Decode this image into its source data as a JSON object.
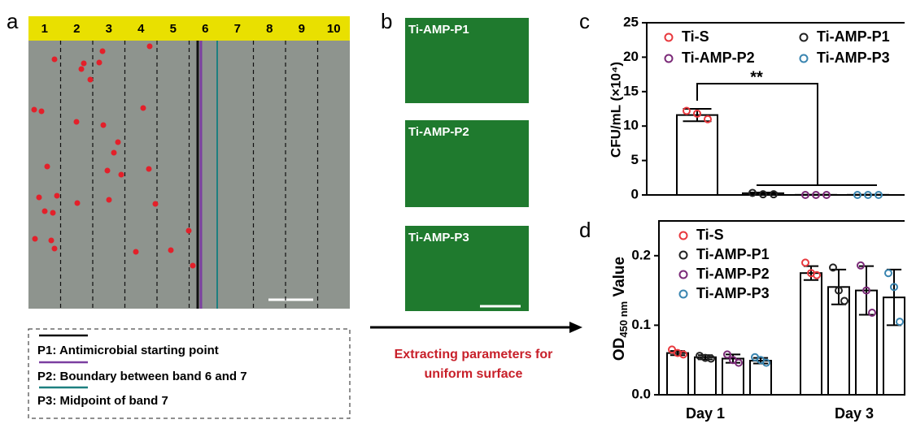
{
  "figure": {
    "panel_labels": [
      "a",
      "b",
      "c",
      "d"
    ],
    "band_numbers": [
      1,
      2,
      3,
      4,
      5,
      6,
      7,
      8,
      9,
      10
    ],
    "legend": [
      "P1: Antimicrobial starting point",
      "P2: Boundary between band 6 and 7",
      "P3: Midpoint of band 7"
    ],
    "image_labels": [
      "Ti-AMP-P1",
      "Ti-AMP-P2",
      "Ti-AMP-P3"
    ],
    "arrow_text": [
      "Extracting parameters for",
      "uniform surface"
    ]
  },
  "chart_data": [
    {
      "type": "bar",
      "ylabel": "CFU/mL (×10⁴)",
      "annotation": "**",
      "ylim": [
        0,
        25
      ],
      "yticks": [
        0,
        5,
        10,
        15,
        20,
        25
      ],
      "series": [
        {
          "name": "Ti-S",
          "color": "#e8383d",
          "values": [
            11.6
          ],
          "errors": [
            0.9
          ],
          "points": [
            [
              12.2,
              11.8,
              11.0
            ]
          ]
        },
        {
          "name": "Ti-AMP-P1",
          "color": "#222222",
          "values": [
            0.25
          ],
          "errors": [
            0.1
          ],
          "points": [
            [
              0.3,
              0.1,
              0.1
            ]
          ]
        },
        {
          "name": "Ti-AMP-P2",
          "color": "#7b2a78",
          "values": [
            0.02
          ],
          "errors": [
            0.01
          ],
          "points": [
            [
              0,
              0,
              0
            ]
          ]
        },
        {
          "name": "Ti-AMP-P3",
          "color": "#3a85b0",
          "values": [
            0.02
          ],
          "errors": [
            0.01
          ],
          "points": [
            [
              0,
              0,
              0
            ]
          ]
        }
      ]
    },
    {
      "type": "bar",
      "ylabel": [
        "OD",
        "450 nm",
        " Value"
      ],
      "categories": [
        "Day 1",
        "Day 3"
      ],
      "ylim": [
        0,
        0.25
      ],
      "yticks": [
        {
          "value": 0,
          "label": "0.0"
        },
        0.1,
        0.2
      ],
      "series": [
        {
          "name": "Ti-S",
          "color": "#e8383d",
          "values": [
            0.06,
            0.175
          ],
          "errors": [
            0.003,
            0.01
          ],
          "points": [
            [
              0.065,
              0.06,
              0.058
            ],
            [
              0.19,
              0.175,
              0.172
            ]
          ]
        },
        {
          "name": "Ti-AMP-P1",
          "color": "#222222",
          "values": [
            0.054,
            0.155
          ],
          "errors": [
            0.003,
            0.025
          ],
          "points": [
            [
              0.056,
              0.053,
              0.052
            ],
            [
              0.183,
              0.15,
              0.135
            ]
          ]
        },
        {
          "name": "Ti-AMP-P2",
          "color": "#7b2a78",
          "values": [
            0.052,
            0.15
          ],
          "errors": [
            0.006,
            0.035
          ],
          "points": [
            [
              0.058,
              0.05,
              0.046
            ],
            [
              0.186,
              0.15,
              0.118
            ]
          ]
        },
        {
          "name": "Ti-AMP-P3",
          "color": "#3a85b0",
          "values": [
            0.049,
            0.14
          ],
          "errors": [
            0.004,
            0.04
          ],
          "points": [
            [
              0.054,
              0.05,
              0.046
            ],
            [
              0.175,
              0.155,
              0.105
            ]
          ]
        }
      ]
    }
  ]
}
